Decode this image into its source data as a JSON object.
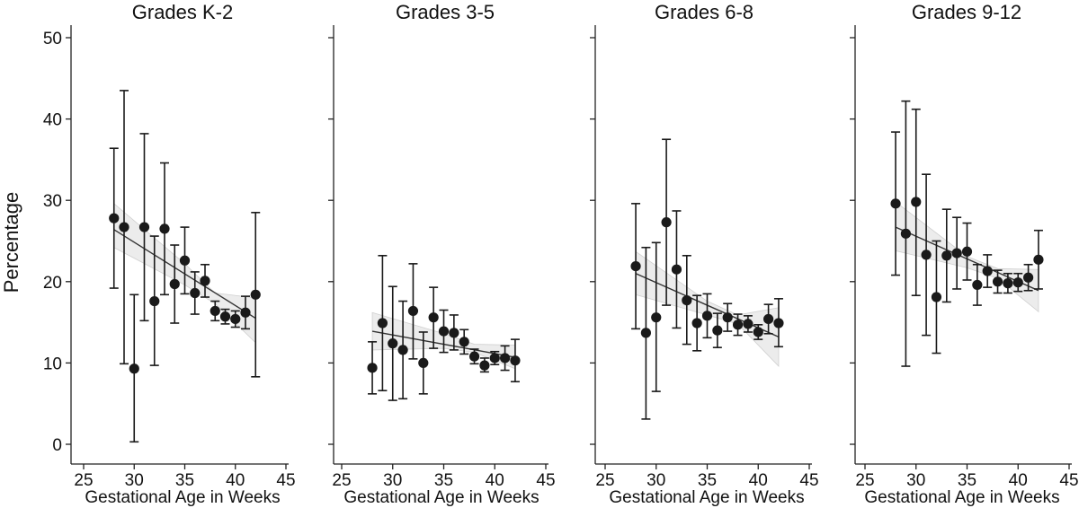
{
  "chart_data": {
    "type": "scatter",
    "ylabel": "Percentage",
    "xlabel": "Gestational Age in Weeks",
    "ylim": [
      0,
      50
    ],
    "yticks": [
      0,
      10,
      20,
      30,
      40,
      50
    ],
    "xlim": [
      25,
      45
    ],
    "xticks": [
      25,
      30,
      35,
      40,
      45
    ],
    "grid": false,
    "marker_color": "#1a1a1a",
    "fit_color": "#333333",
    "ci_band_color": "#dddddd",
    "panels": [
      {
        "title": "Grades K-2",
        "points": [
          {
            "x": 28,
            "y": 27.8,
            "lo": 19.2,
            "hi": 36.4
          },
          {
            "x": 29,
            "y": 26.7,
            "lo": 9.9,
            "hi": 43.5
          },
          {
            "x": 30,
            "y": 9.3,
            "lo": 0.3,
            "hi": 18.4
          },
          {
            "x": 31,
            "y": 26.7,
            "lo": 15.2,
            "hi": 38.2
          },
          {
            "x": 32,
            "y": 17.6,
            "lo": 9.7,
            "hi": 25.6
          },
          {
            "x": 33,
            "y": 26.5,
            "lo": 18.4,
            "hi": 34.6
          },
          {
            "x": 34,
            "y": 19.7,
            "lo": 14.9,
            "hi": 24.5
          },
          {
            "x": 35,
            "y": 22.6,
            "lo": 18.5,
            "hi": 26.7
          },
          {
            "x": 36,
            "y": 18.6,
            "lo": 16.0,
            "hi": 21.2
          },
          {
            "x": 37,
            "y": 20.1,
            "lo": 18.1,
            "hi": 22.1
          },
          {
            "x": 38,
            "y": 16.4,
            "lo": 15.2,
            "hi": 17.6
          },
          {
            "x": 39,
            "y": 15.7,
            "lo": 14.8,
            "hi": 16.6
          },
          {
            "x": 40,
            "y": 15.4,
            "lo": 14.4,
            "hi": 16.4
          },
          {
            "x": 41,
            "y": 16.2,
            "lo": 14.2,
            "hi": 18.2
          },
          {
            "x": 42,
            "y": 18.4,
            "lo": 8.3,
            "hi": 28.5
          }
        ],
        "fit": {
          "x0": 28,
          "y0": 26.4,
          "x1": 42,
          "y1": 15.5
        },
        "band": [
          {
            "x": 28,
            "lo": 24.2,
            "hi": 29.6
          },
          {
            "x": 35,
            "lo": 19.6,
            "hi": 22.2
          },
          {
            "x": 38,
            "lo": 17.3,
            "hi": 18.6
          },
          {
            "x": 42,
            "lo": 12.5,
            "hi": 18.0
          }
        ]
      },
      {
        "title": "Grades 3-5",
        "points": [
          {
            "x": 28,
            "y": 9.4,
            "lo": 6.2,
            "hi": 12.6
          },
          {
            "x": 29,
            "y": 14.9,
            "lo": 6.6,
            "hi": 23.2
          },
          {
            "x": 30,
            "y": 12.4,
            "lo": 5.4,
            "hi": 19.4
          },
          {
            "x": 31,
            "y": 11.6,
            "lo": 5.6,
            "hi": 17.6
          },
          {
            "x": 32,
            "y": 16.4,
            "lo": 10.5,
            "hi": 22.2
          },
          {
            "x": 33,
            "y": 10.0,
            "lo": 6.2,
            "hi": 13.8
          },
          {
            "x": 34,
            "y": 15.6,
            "lo": 11.8,
            "hi": 19.3
          },
          {
            "x": 35,
            "y": 13.9,
            "lo": 11.3,
            "hi": 16.5
          },
          {
            "x": 36,
            "y": 13.7,
            "lo": 11.6,
            "hi": 15.9
          },
          {
            "x": 37,
            "y": 12.6,
            "lo": 11.1,
            "hi": 14.1
          },
          {
            "x": 38,
            "y": 10.8,
            "lo": 9.9,
            "hi": 11.7
          },
          {
            "x": 39,
            "y": 9.7,
            "lo": 8.9,
            "hi": 10.6
          },
          {
            "x": 40,
            "y": 10.6,
            "lo": 9.8,
            "hi": 11.4
          },
          {
            "x": 41,
            "y": 10.6,
            "lo": 9.1,
            "hi": 12.1
          },
          {
            "x": 42,
            "y": 10.3,
            "lo": 7.7,
            "hi": 12.9
          }
        ],
        "fit": {
          "x0": 28,
          "y0": 13.9,
          "x1": 42,
          "y1": 10.7
        },
        "band": [
          {
            "x": 28,
            "lo": 11.6,
            "hi": 16.2
          },
          {
            "x": 35,
            "lo": 11.8,
            "hi": 13.6
          },
          {
            "x": 38,
            "lo": 11.3,
            "hi": 12.3
          },
          {
            "x": 42,
            "lo": 9.3,
            "hi": 12.2
          }
        ]
      },
      {
        "title": "Grades 6-8",
        "points": [
          {
            "x": 28,
            "y": 21.9,
            "lo": 14.2,
            "hi": 29.6
          },
          {
            "x": 29,
            "y": 13.7,
            "lo": 3.1,
            "hi": 24.2
          },
          {
            "x": 30,
            "y": 15.6,
            "lo": 6.5,
            "hi": 24.8
          },
          {
            "x": 31,
            "y": 27.3,
            "lo": 17.1,
            "hi": 37.5
          },
          {
            "x": 32,
            "y": 21.5,
            "lo": 14.3,
            "hi": 28.7
          },
          {
            "x": 33,
            "y": 17.7,
            "lo": 12.3,
            "hi": 23.2
          },
          {
            "x": 34,
            "y": 14.9,
            "lo": 11.5,
            "hi": 18.3
          },
          {
            "x": 35,
            "y": 15.8,
            "lo": 13.1,
            "hi": 18.5
          },
          {
            "x": 36,
            "y": 14.0,
            "lo": 11.9,
            "hi": 16.1
          },
          {
            "x": 37,
            "y": 15.6,
            "lo": 13.9,
            "hi": 17.3
          },
          {
            "x": 38,
            "y": 14.7,
            "lo": 13.4,
            "hi": 16.0
          },
          {
            "x": 39,
            "y": 14.8,
            "lo": 13.8,
            "hi": 15.8
          },
          {
            "x": 40,
            "y": 13.8,
            "lo": 12.9,
            "hi": 14.7
          },
          {
            "x": 41,
            "y": 15.4,
            "lo": 13.6,
            "hi": 17.2
          },
          {
            "x": 42,
            "y": 14.9,
            "lo": 12.0,
            "hi": 17.9
          }
        ],
        "fit": {
          "x0": 28,
          "y0": 21.0,
          "x1": 42,
          "y1": 13.2
        },
        "band": [
          {
            "x": 28,
            "lo": 18.4,
            "hi": 23.7
          },
          {
            "x": 35,
            "lo": 15.9,
            "hi": 17.6
          },
          {
            "x": 38,
            "lo": 14.8,
            "hi": 15.9
          },
          {
            "x": 42,
            "lo": 9.6,
            "hi": 16.8
          }
        ]
      },
      {
        "title": "Grades 9-12",
        "points": [
          {
            "x": 28,
            "y": 29.6,
            "lo": 20.8,
            "hi": 38.4
          },
          {
            "x": 29,
            "y": 25.9,
            "lo": 9.6,
            "hi": 42.2
          },
          {
            "x": 30,
            "y": 29.8,
            "lo": 18.3,
            "hi": 41.2
          },
          {
            "x": 31,
            "y": 23.3,
            "lo": 13.4,
            "hi": 33.2
          },
          {
            "x": 32,
            "y": 18.1,
            "lo": 11.2,
            "hi": 25.0
          },
          {
            "x": 33,
            "y": 23.2,
            "lo": 17.5,
            "hi": 28.9
          },
          {
            "x": 34,
            "y": 23.5,
            "lo": 19.1,
            "hi": 27.9
          },
          {
            "x": 35,
            "y": 23.7,
            "lo": 20.2,
            "hi": 27.2
          },
          {
            "x": 36,
            "y": 19.6,
            "lo": 17.1,
            "hi": 22.1
          },
          {
            "x": 37,
            "y": 21.3,
            "lo": 19.3,
            "hi": 23.3
          },
          {
            "x": 38,
            "y": 20.0,
            "lo": 18.6,
            "hi": 21.4
          },
          {
            "x": 39,
            "y": 19.8,
            "lo": 18.6,
            "hi": 21.0
          },
          {
            "x": 40,
            "y": 19.9,
            "lo": 18.8,
            "hi": 21.0
          },
          {
            "x": 41,
            "y": 20.5,
            "lo": 18.9,
            "hi": 22.1
          },
          {
            "x": 42,
            "y": 22.7,
            "lo": 19.1,
            "hi": 26.3
          }
        ],
        "fit": {
          "x0": 28,
          "y0": 26.7,
          "x1": 42,
          "y1": 18.9
        },
        "band": [
          {
            "x": 28,
            "lo": 23.8,
            "hi": 29.8
          },
          {
            "x": 35,
            "lo": 21.7,
            "hi": 23.1
          },
          {
            "x": 38,
            "lo": 20.4,
            "hi": 21.6
          },
          {
            "x": 42,
            "lo": 16.3,
            "hi": 21.5
          }
        ]
      }
    ]
  }
}
